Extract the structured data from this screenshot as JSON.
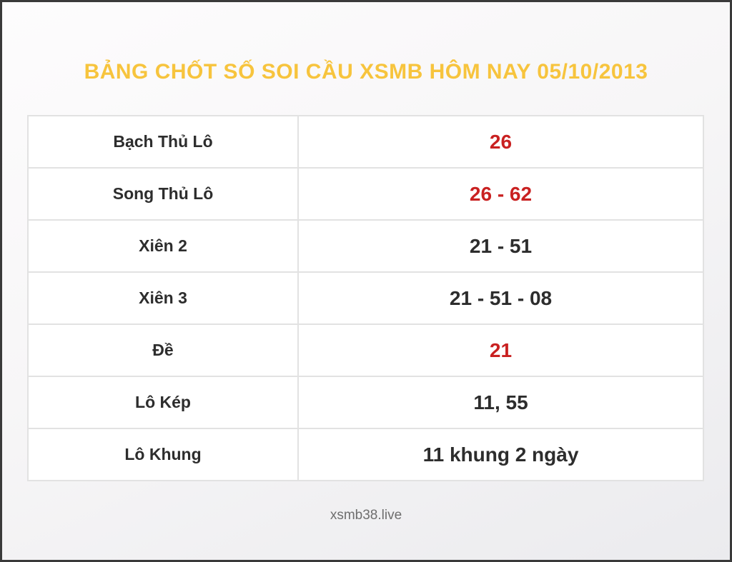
{
  "page": {
    "title": "BẢNG CHỐT SỐ SOI CẦU XSMB HÔM NAY 05/10/2013",
    "footer": "xsmb38.live"
  },
  "colors": {
    "title": "#F7C43D",
    "red": "#C92121",
    "text": "#2D2D2D",
    "border": "#E2E2E2",
    "muted": "#6E6E6E",
    "frame": "#3A3A3A"
  },
  "table": {
    "rows": [
      {
        "label": "Bạch Thủ Lô",
        "value": "26",
        "highlight": true
      },
      {
        "label": "Song Thủ Lô",
        "value": "26 - 62",
        "highlight": true
      },
      {
        "label": "Xiên 2",
        "value": "21 - 51",
        "highlight": false
      },
      {
        "label": "Xiên 3",
        "value": "21 - 51 - 08",
        "highlight": false
      },
      {
        "label": "Đề",
        "value": "21",
        "highlight": true
      },
      {
        "label": "Lô Kép",
        "value": "11, 55",
        "highlight": false
      },
      {
        "label": "Lô Khung",
        "value": "11 khung 2 ngày",
        "highlight": false
      }
    ]
  }
}
